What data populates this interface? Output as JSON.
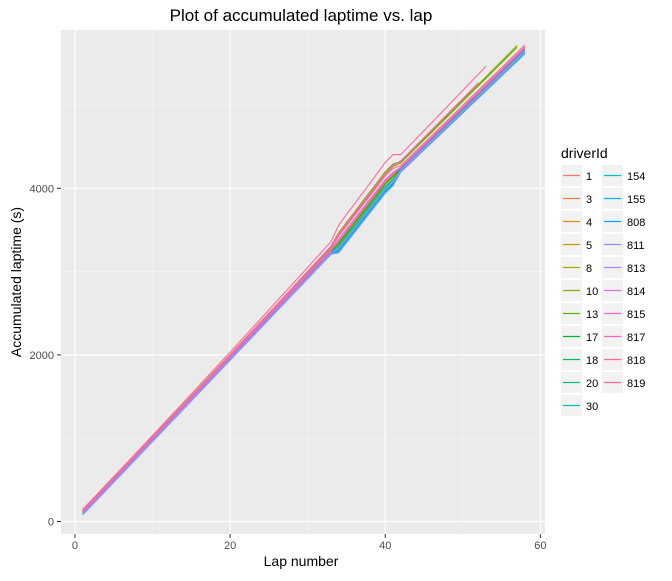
{
  "chart_data": {
    "type": "line",
    "title": "Plot of accumulated laptime vs. lap",
    "xlabel": "Lap number",
    "ylabel": "Accumulated laptime (s)",
    "xlim": [
      -1.8,
      60.6
    ],
    "ylim": [
      -150,
      5900
    ],
    "x_ticks": [
      0,
      20,
      40,
      60
    ],
    "y_ticks": [
      0,
      2000,
      4000
    ],
    "grid": true,
    "legend": {
      "title": "driverId",
      "placement": "right",
      "columns": 2
    },
    "series": [
      {
        "name": "1",
        "color": "#F8766D",
        "last_lap": 58,
        "end_time": 5695,
        "offset": 5
      },
      {
        "name": "3",
        "color": "#EC8239",
        "last_lap": 58,
        "end_time": 5690,
        "offset": 8
      },
      {
        "name": "4",
        "color": "#DB8E00",
        "last_lap": 58,
        "end_time": 5688,
        "offset": 0
      },
      {
        "name": "5",
        "color": "#C79800",
        "last_lap": 58,
        "end_time": 5686,
        "offset": 10
      },
      {
        "name": "8",
        "color": "#AEA200",
        "last_lap": 58,
        "end_time": 5685,
        "offset": 12
      },
      {
        "name": "10",
        "color": "#8FAA00",
        "last_lap": 57,
        "end_time": 5690,
        "offset": 40
      },
      {
        "name": "13",
        "color": "#64B200",
        "last_lap": 57,
        "end_time": 5675,
        "offset": 30
      },
      {
        "name": "17",
        "color": "#00B81B",
        "last_lap": 58,
        "end_time": 5680,
        "offset": -5
      },
      {
        "name": "18",
        "color": "#00BD5C",
        "last_lap": 58,
        "end_time": 5670,
        "offset": -15
      },
      {
        "name": "20",
        "color": "#00C08E",
        "last_lap": 58,
        "end_time": 5660,
        "offset": -20
      },
      {
        "name": "30",
        "color": "#00C1B7",
        "last_lap": 58,
        "end_time": 5650,
        "offset": -30
      },
      {
        "name": "154",
        "color": "#00BDD4",
        "last_lap": 58,
        "end_time": 5645,
        "offset": -35
      },
      {
        "name": "155",
        "color": "#00B5EE",
        "last_lap": 58,
        "end_time": 5640,
        "offset": -40
      },
      {
        "name": "808",
        "color": "#00A7FF",
        "last_lap": 58,
        "end_time": 5655,
        "offset": -45
      },
      {
        "name": "811",
        "color": "#7F96FF",
        "last_lap": 58,
        "end_time": 5660,
        "offset": -50
      },
      {
        "name": "813",
        "color": "#BC81FF",
        "last_lap": 58,
        "end_time": 5665,
        "offset": -25
      },
      {
        "name": "814",
        "color": "#E26EF7",
        "last_lap": 58,
        "end_time": 5675,
        "offset": 15
      },
      {
        "name": "815",
        "color": "#F863DF",
        "last_lap": 58,
        "end_time": 5680,
        "offset": 20
      },
      {
        "name": "817",
        "color": "#FF62BF",
        "last_lap": 52,
        "end_time": 5250,
        "offset": 25
      },
      {
        "name": "818",
        "color": "#FF6A9A",
        "last_lap": 53,
        "end_time": 5430,
        "offset": 60
      },
      {
        "name": "819",
        "color": "#FF6A98",
        "last_lap": 58,
        "end_time": 5700,
        "offset": 35
      }
    ]
  }
}
